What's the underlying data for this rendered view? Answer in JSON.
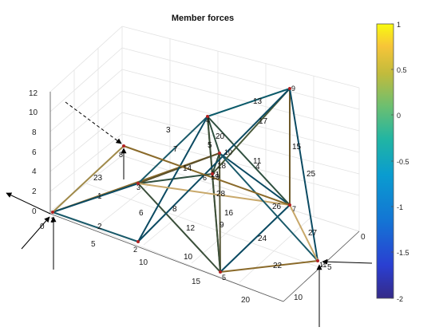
{
  "title": "Member forces",
  "colorbar": {
    "ticks": [
      "1",
      "0.5",
      "0",
      "-0.5",
      "-1",
      "-1.5",
      "-2"
    ],
    "stops": [
      "#f9fb0e",
      "#fbbf3a",
      "#c1b93a",
      "#55b97a",
      "#24a3b9",
      "#1e7be0",
      "#3b3fd0",
      "#352a87"
    ]
  },
  "axes": {
    "z_ticks": [
      "0",
      "2",
      "4",
      "6",
      "8",
      "10",
      "12"
    ],
    "x_ticks": [
      "0",
      "5",
      "10",
      "15",
      "20"
    ],
    "y_ticks": [
      "0",
      "5",
      "10"
    ]
  },
  "nodes": [
    "1",
    "2",
    "3",
    "4",
    "5",
    "6",
    "7",
    "8",
    "9",
    "10",
    "11"
  ],
  "members": [
    {
      "id": "1",
      "a": "A",
      "b": "E"
    },
    {
      "id": "2",
      "a": "A",
      "b": "F"
    },
    {
      "id": "3",
      "a": "C",
      "b": "D"
    },
    {
      "id": "4",
      "a": "A",
      "b": "C"
    },
    {
      "id": "5",
      "a": "D",
      "b": "F"
    },
    {
      "id": "6",
      "a": "C",
      "b": "G"
    },
    {
      "id": "7",
      "a": "D",
      "b": "G"
    },
    {
      "id": "8",
      "a": "C",
      "b": "J"
    },
    {
      "id": "9",
      "a": "F",
      "b": "J"
    },
    {
      "id": "10",
      "a": "G",
      "b": "J"
    },
    {
      "id": "11",
      "a": "F",
      "b": "H"
    },
    {
      "id": "12",
      "a": "G",
      "b": "F"
    },
    {
      "id": "13",
      "a": "D",
      "b": "I"
    },
    {
      "id": "14",
      "a": "C",
      "b": "F"
    },
    {
      "id": "15",
      "a": "I",
      "b": "H"
    },
    {
      "id": "16",
      "a": "D",
      "b": "J"
    },
    {
      "id": "17",
      "a": "G",
      "b": "I"
    },
    {
      "id": "18",
      "a": "E",
      "b": "D"
    },
    {
      "id": "19",
      "a": "C",
      "b": "H"
    },
    {
      "id": "20",
      "a": "D",
      "b": "H"
    },
    {
      "id": "21",
      "a": "E",
      "b": "I"
    },
    {
      "id": "22",
      "a": "J",
      "b": "K"
    },
    {
      "id": "23",
      "a": "A",
      "b": "B"
    },
    {
      "id": "24",
      "a": "J",
      "b": "H"
    },
    {
      "id": "25",
      "a": "I",
      "b": "K"
    },
    {
      "id": "26",
      "a": "F",
      "b": "K"
    },
    {
      "id": "27",
      "a": "H",
      "b": "K"
    },
    {
      "id": "28",
      "a": "B",
      "b": "H"
    }
  ]
}
